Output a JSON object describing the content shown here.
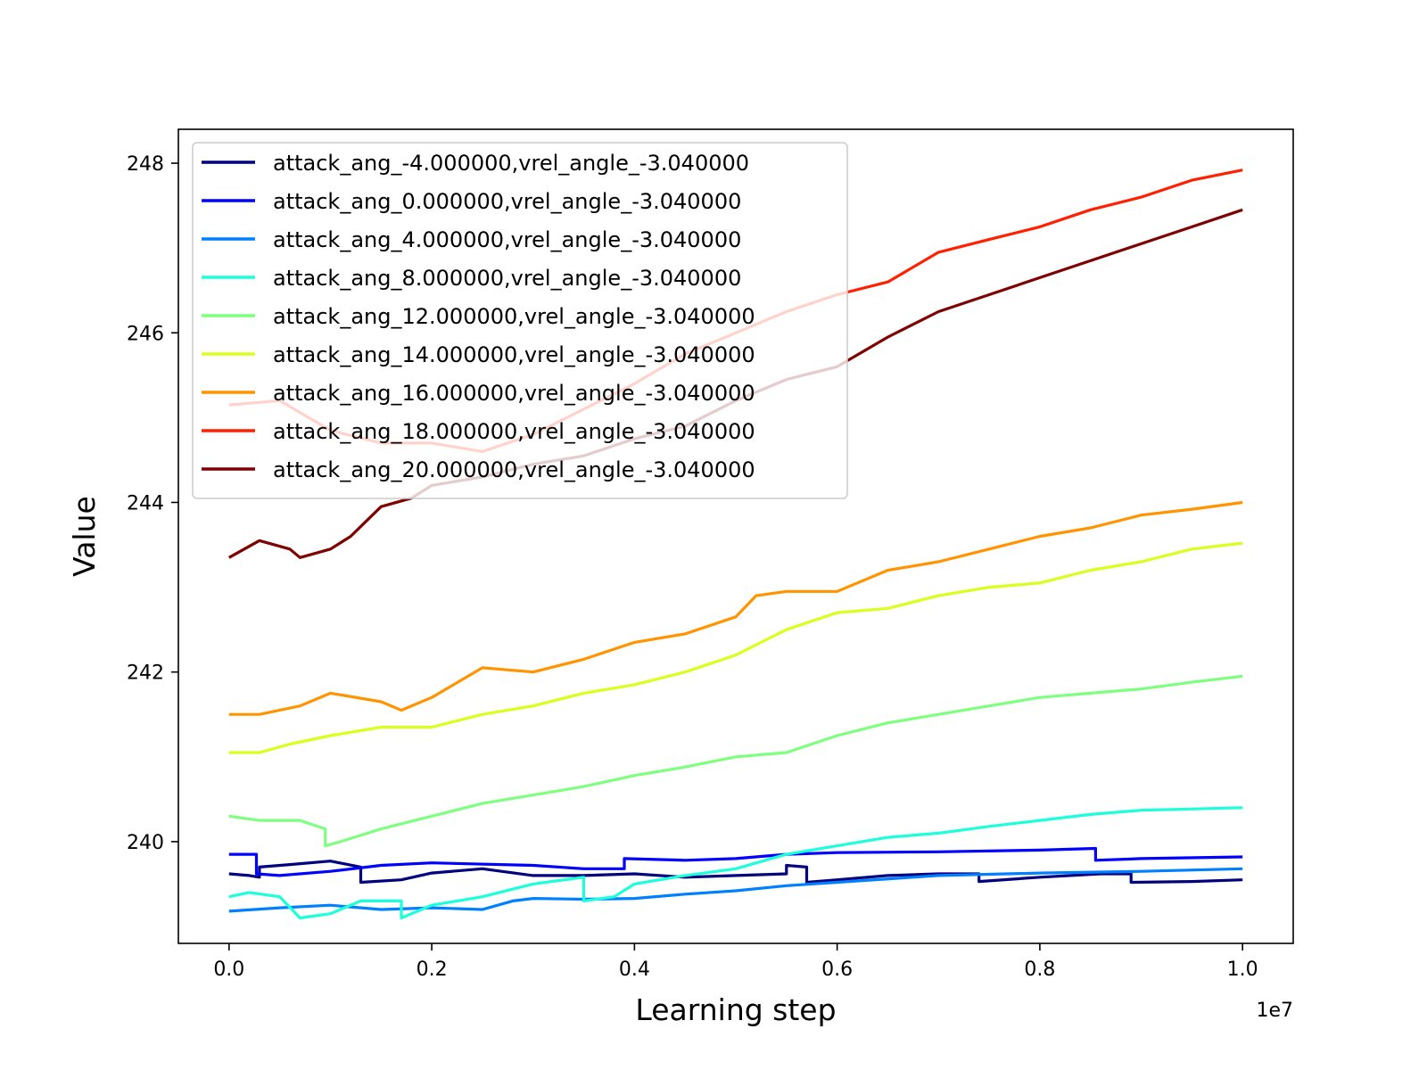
{
  "chart_data": {
    "type": "line",
    "xlabel": "Learning step",
    "ylabel": "Value",
    "x_offset_text": "1e7",
    "xlim": [
      -0.05,
      1.05
    ],
    "ylim": [
      238.8,
      248.4
    ],
    "xticks": [
      0.0,
      0.2,
      0.4,
      0.6,
      0.8,
      1.0
    ],
    "xtick_labels": [
      "0.0",
      "0.2",
      "0.4",
      "0.6",
      "0.8",
      "1.0"
    ],
    "yticks": [
      240,
      242,
      244,
      246,
      248
    ],
    "ytick_labels": [
      "240",
      "242",
      "244",
      "246",
      "248"
    ],
    "grid": false,
    "legend_position": "upper left",
    "series": [
      {
        "name": "attack_ang_-4.000000,vrel_angle_-3.040000",
        "color": "#00007f",
        "points": [
          [
            0.0,
            239.62
          ],
          [
            0.02,
            239.6
          ],
          [
            0.03,
            239.58
          ],
          [
            0.03,
            239.7
          ],
          [
            0.06,
            239.73
          ],
          [
            0.1,
            239.77
          ],
          [
            0.13,
            239.7
          ],
          [
            0.13,
            239.52
          ],
          [
            0.17,
            239.55
          ],
          [
            0.2,
            239.63
          ],
          [
            0.25,
            239.68
          ],
          [
            0.3,
            239.6
          ],
          [
            0.35,
            239.6
          ],
          [
            0.4,
            239.62
          ],
          [
            0.45,
            239.58
          ],
          [
            0.5,
            239.6
          ],
          [
            0.55,
            239.62
          ],
          [
            0.55,
            239.72
          ],
          [
            0.57,
            239.7
          ],
          [
            0.57,
            239.52
          ],
          [
            0.6,
            239.55
          ],
          [
            0.65,
            239.6
          ],
          [
            0.7,
            239.62
          ],
          [
            0.74,
            239.62
          ],
          [
            0.74,
            239.53
          ],
          [
            0.8,
            239.58
          ],
          [
            0.86,
            239.62
          ],
          [
            0.89,
            239.62
          ],
          [
            0.89,
            239.52
          ],
          [
            0.95,
            239.53
          ],
          [
            1.0,
            239.55
          ]
        ]
      },
      {
        "name": "attack_ang_0.000000,vrel_angle_-3.040000",
        "color": "#0000ff",
        "points": [
          [
            0.0,
            239.85
          ],
          [
            0.027,
            239.85
          ],
          [
            0.027,
            239.62
          ],
          [
            0.05,
            239.6
          ],
          [
            0.1,
            239.65
          ],
          [
            0.15,
            239.72
          ],
          [
            0.2,
            239.75
          ],
          [
            0.3,
            239.72
          ],
          [
            0.35,
            239.68
          ],
          [
            0.39,
            239.68
          ],
          [
            0.39,
            239.8
          ],
          [
            0.45,
            239.78
          ],
          [
            0.5,
            239.8
          ],
          [
            0.55,
            239.85
          ],
          [
            0.6,
            239.87
          ],
          [
            0.7,
            239.88
          ],
          [
            0.8,
            239.9
          ],
          [
            0.855,
            239.92
          ],
          [
            0.855,
            239.78
          ],
          [
            0.9,
            239.8
          ],
          [
            1.0,
            239.82
          ]
        ]
      },
      {
        "name": "attack_ang_4.000000,vrel_angle_-3.040000",
        "color": "#007fff",
        "points": [
          [
            0.0,
            239.18
          ],
          [
            0.05,
            239.22
          ],
          [
            0.1,
            239.25
          ],
          [
            0.15,
            239.2
          ],
          [
            0.2,
            239.22
          ],
          [
            0.25,
            239.2
          ],
          [
            0.28,
            239.3
          ],
          [
            0.3,
            239.33
          ],
          [
            0.35,
            239.32
          ],
          [
            0.4,
            239.33
          ],
          [
            0.45,
            239.38
          ],
          [
            0.5,
            239.42
          ],
          [
            0.55,
            239.48
          ],
          [
            0.6,
            239.52
          ],
          [
            0.7,
            239.6
          ],
          [
            0.8,
            239.63
          ],
          [
            0.9,
            239.65
          ],
          [
            1.0,
            239.68
          ]
        ]
      },
      {
        "name": "attack_ang_8.000000,vrel_angle_-3.040000",
        "color": "#1cffdb",
        "points": [
          [
            0.0,
            239.35
          ],
          [
            0.02,
            239.4
          ],
          [
            0.05,
            239.35
          ],
          [
            0.07,
            239.1
          ],
          [
            0.1,
            239.15
          ],
          [
            0.13,
            239.3
          ],
          [
            0.17,
            239.3
          ],
          [
            0.17,
            239.1
          ],
          [
            0.2,
            239.25
          ],
          [
            0.25,
            239.35
          ],
          [
            0.3,
            239.5
          ],
          [
            0.35,
            239.58
          ],
          [
            0.35,
            239.3
          ],
          [
            0.38,
            239.35
          ],
          [
            0.4,
            239.5
          ],
          [
            0.45,
            239.6
          ],
          [
            0.5,
            239.68
          ],
          [
            0.55,
            239.85
          ],
          [
            0.6,
            239.95
          ],
          [
            0.65,
            240.05
          ],
          [
            0.7,
            240.1
          ],
          [
            0.75,
            240.18
          ],
          [
            0.8,
            240.25
          ],
          [
            0.85,
            240.32
          ],
          [
            0.9,
            240.37
          ],
          [
            1.0,
            240.4
          ]
        ]
      },
      {
        "name": "attack_ang_12.000000,vrel_angle_-3.040000",
        "color": "#7fff7f",
        "points": [
          [
            0.0,
            240.3
          ],
          [
            0.03,
            240.25
          ],
          [
            0.07,
            240.25
          ],
          [
            0.095,
            240.15
          ],
          [
            0.095,
            239.95
          ],
          [
            0.11,
            240.0
          ],
          [
            0.15,
            240.15
          ],
          [
            0.2,
            240.3
          ],
          [
            0.25,
            240.45
          ],
          [
            0.3,
            240.55
          ],
          [
            0.35,
            240.65
          ],
          [
            0.4,
            240.78
          ],
          [
            0.45,
            240.88
          ],
          [
            0.5,
            241.0
          ],
          [
            0.55,
            241.05
          ],
          [
            0.6,
            241.25
          ],
          [
            0.65,
            241.4
          ],
          [
            0.7,
            241.5
          ],
          [
            0.75,
            241.6
          ],
          [
            0.8,
            241.7
          ],
          [
            0.85,
            241.75
          ],
          [
            0.9,
            241.8
          ],
          [
            0.95,
            241.88
          ],
          [
            1.0,
            241.95
          ]
        ]
      },
      {
        "name": "attack_ang_14.000000,vrel_angle_-3.040000",
        "color": "#dbff1c",
        "points": [
          [
            0.0,
            241.05
          ],
          [
            0.03,
            241.05
          ],
          [
            0.06,
            241.15
          ],
          [
            0.1,
            241.25
          ],
          [
            0.15,
            241.35
          ],
          [
            0.2,
            241.35
          ],
          [
            0.25,
            241.5
          ],
          [
            0.3,
            241.6
          ],
          [
            0.35,
            241.75
          ],
          [
            0.4,
            241.85
          ],
          [
            0.45,
            242.0
          ],
          [
            0.5,
            242.2
          ],
          [
            0.55,
            242.5
          ],
          [
            0.6,
            242.7
          ],
          [
            0.65,
            242.75
          ],
          [
            0.7,
            242.9
          ],
          [
            0.75,
            243.0
          ],
          [
            0.8,
            243.05
          ],
          [
            0.85,
            243.2
          ],
          [
            0.9,
            243.3
          ],
          [
            0.95,
            243.45
          ],
          [
            1.0,
            243.52
          ]
        ]
      },
      {
        "name": "attack_ang_16.000000,vrel_angle_-3.040000",
        "color": "#ff9400",
        "points": [
          [
            0.0,
            241.5
          ],
          [
            0.03,
            241.5
          ],
          [
            0.07,
            241.6
          ],
          [
            0.1,
            241.75
          ],
          [
            0.15,
            241.65
          ],
          [
            0.17,
            241.55
          ],
          [
            0.2,
            241.7
          ],
          [
            0.25,
            242.05
          ],
          [
            0.3,
            242.0
          ],
          [
            0.35,
            242.15
          ],
          [
            0.4,
            242.35
          ],
          [
            0.45,
            242.45
          ],
          [
            0.5,
            242.65
          ],
          [
            0.52,
            242.9
          ],
          [
            0.55,
            242.95
          ],
          [
            0.6,
            242.95
          ],
          [
            0.65,
            243.2
          ],
          [
            0.7,
            243.3
          ],
          [
            0.75,
            243.45
          ],
          [
            0.8,
            243.6
          ],
          [
            0.85,
            243.7
          ],
          [
            0.9,
            243.85
          ],
          [
            0.95,
            243.92
          ],
          [
            1.0,
            244.0
          ]
        ]
      },
      {
        "name": "attack_ang_18.000000,vrel_angle_-3.040000",
        "color": "#ff2000",
        "points": [
          [
            0.0,
            245.15
          ],
          [
            0.05,
            245.2
          ],
          [
            0.1,
            244.85
          ],
          [
            0.15,
            244.7
          ],
          [
            0.2,
            244.7
          ],
          [
            0.25,
            244.6
          ],
          [
            0.3,
            244.8
          ],
          [
            0.35,
            245.1
          ],
          [
            0.4,
            245.4
          ],
          [
            0.45,
            245.75
          ],
          [
            0.5,
            246.0
          ],
          [
            0.55,
            246.25
          ],
          [
            0.6,
            246.45
          ],
          [
            0.65,
            246.6
          ],
          [
            0.7,
            246.95
          ],
          [
            0.75,
            247.1
          ],
          [
            0.8,
            247.25
          ],
          [
            0.85,
            247.45
          ],
          [
            0.9,
            247.6
          ],
          [
            0.95,
            247.8
          ],
          [
            1.0,
            247.92
          ]
        ]
      },
      {
        "name": "attack_ang_20.000000,vrel_angle_-3.040000",
        "color": "#7f0000",
        "points": [
          [
            0.0,
            243.35
          ],
          [
            0.03,
            243.55
          ],
          [
            0.06,
            243.45
          ],
          [
            0.07,
            243.35
          ],
          [
            0.1,
            243.45
          ],
          [
            0.12,
            243.6
          ],
          [
            0.15,
            243.95
          ],
          [
            0.18,
            244.05
          ],
          [
            0.2,
            244.2
          ],
          [
            0.25,
            244.3
          ],
          [
            0.3,
            244.45
          ],
          [
            0.35,
            244.55
          ],
          [
            0.4,
            244.75
          ],
          [
            0.45,
            244.9
          ],
          [
            0.5,
            245.2
          ],
          [
            0.55,
            245.45
          ],
          [
            0.6,
            245.6
          ],
          [
            0.65,
            245.95
          ],
          [
            0.7,
            246.25
          ],
          [
            0.75,
            246.45
          ],
          [
            0.8,
            246.65
          ],
          [
            0.85,
            246.85
          ],
          [
            0.9,
            247.05
          ],
          [
            0.95,
            247.25
          ],
          [
            1.0,
            247.45
          ]
        ]
      }
    ]
  }
}
